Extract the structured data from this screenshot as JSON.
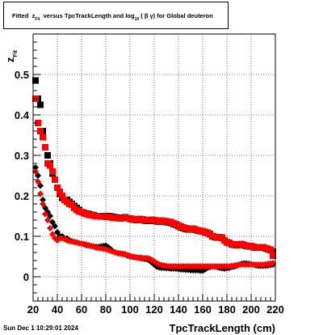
{
  "chart_data": {
    "type": "scatter",
    "title_parts": {
      "prefix": "Fitted",
      "var": "z",
      "var_sub": "Fit",
      "middle": "versus TpcTrackLength and log",
      "log_sub": "10",
      "suffix": "( β γ) for Global deuteron"
    },
    "xlabel": "TpcTrackLength (cm)",
    "ylabel": "z",
    "ylabel_sub": "Fit",
    "xlim": [
      20,
      220
    ],
    "ylim": [
      -0.06,
      0.6
    ],
    "x_ticks": [
      20,
      40,
      60,
      80,
      100,
      120,
      140,
      160,
      180,
      200,
      220
    ],
    "y_ticks": [
      0,
      0.1,
      0.2,
      0.3,
      0.4,
      0.5
    ],
    "y_tick_labels": [
      "0",
      "0.1",
      "0.2",
      "0.3",
      "0.4",
      "0.5"
    ],
    "grid": true,
    "series": [
      {
        "color": "#000000",
        "marker": "square",
        "x": [
          22,
          24,
          26,
          28,
          30,
          32,
          34,
          36,
          38,
          40,
          42,
          44,
          46,
          48,
          50,
          52,
          54,
          56,
          58,
          60,
          62,
          64,
          66,
          68,
          70,
          72,
          74,
          76,
          78,
          80,
          82,
          84,
          86,
          88,
          90,
          92,
          94,
          96,
          98,
          100,
          102,
          104,
          106,
          108,
          110,
          112,
          114,
          116,
          118,
          120,
          122,
          124,
          126,
          128,
          130,
          132,
          134,
          136,
          138,
          140,
          142,
          144,
          146,
          148,
          150,
          152,
          154,
          156,
          158,
          160,
          162,
          164,
          166,
          168,
          170,
          172,
          174,
          176,
          178,
          180,
          182,
          184,
          186,
          188,
          190,
          192,
          194,
          196,
          198,
          200,
          202,
          204,
          206,
          208,
          210,
          212,
          214,
          216,
          218
        ],
        "y": [
          0.485,
          0.44,
          0.425,
          0.36,
          0.32,
          0.3,
          0.28,
          0.255,
          0.24,
          0.22,
          0.205,
          0.195,
          0.19,
          0.19,
          0.185,
          0.18,
          0.175,
          0.17,
          0.165,
          0.16,
          0.158,
          0.156,
          0.155,
          0.153,
          0.152,
          0.15,
          0.15,
          0.15,
          0.15,
          0.15,
          0.15,
          0.149,
          0.148,
          0.147,
          0.146,
          0.145,
          0.146,
          0.147,
          0.145,
          0.143,
          0.142,
          0.141,
          0.14,
          0.141,
          0.14,
          0.139,
          0.138,
          0.138,
          0.139,
          0.138,
          0.137,
          0.136,
          0.137,
          0.136,
          0.135,
          0.134,
          0.133,
          0.13,
          0.128,
          0.125,
          0.122,
          0.12,
          0.118,
          0.117,
          0.117,
          0.118,
          0.116,
          0.114,
          0.113,
          0.112,
          0.11,
          0.108,
          0.105,
          0.1,
          0.098,
          0.097,
          0.097,
          0.096,
          0.09,
          0.085,
          0.083,
          0.08,
          0.079,
          0.078,
          0.079,
          0.08,
          0.078,
          0.076,
          0.075,
          0.075,
          0.073,
          0.072,
          0.072,
          0.072,
          0.072,
          0.07,
          0.068,
          0.066,
          0.062
        ]
      },
      {
        "color": "#ff0000",
        "marker": "square",
        "x": [
          22,
          24,
          26,
          28,
          30,
          32,
          34,
          36,
          38,
          40,
          42,
          44,
          46,
          48,
          50,
          52,
          54,
          56,
          58,
          60,
          62,
          64,
          66,
          68,
          70,
          72,
          74,
          76,
          78,
          80,
          82,
          84,
          86,
          88,
          90,
          92,
          94,
          96,
          98,
          100,
          102,
          104,
          106,
          108,
          110,
          112,
          114,
          116,
          118,
          120,
          122,
          124,
          126,
          128,
          130,
          132,
          134,
          136,
          138,
          140,
          142,
          144,
          146,
          148,
          150,
          152,
          154,
          156,
          158,
          160,
          162,
          164,
          166,
          168,
          170,
          172,
          174,
          176,
          178,
          180,
          182,
          184,
          186,
          188,
          190,
          192,
          194,
          196,
          198,
          200,
          202,
          204,
          206,
          208,
          210,
          212,
          214,
          216,
          218
        ],
        "y": [
          0.44,
          0.38,
          0.36,
          0.345,
          0.32,
          0.28,
          0.275,
          0.26,
          0.24,
          0.22,
          0.21,
          0.2,
          0.19,
          0.185,
          0.18,
          0.178,
          0.17,
          0.165,
          0.162,
          0.16,
          0.157,
          0.155,
          0.153,
          0.152,
          0.151,
          0.15,
          0.15,
          0.149,
          0.149,
          0.148,
          0.148,
          0.147,
          0.146,
          0.146,
          0.145,
          0.144,
          0.145,
          0.146,
          0.145,
          0.144,
          0.143,
          0.142,
          0.142,
          0.143,
          0.142,
          0.141,
          0.14,
          0.14,
          0.141,
          0.14,
          0.139,
          0.138,
          0.139,
          0.138,
          0.137,
          0.136,
          0.135,
          0.132,
          0.13,
          0.127,
          0.124,
          0.122,
          0.12,
          0.119,
          0.118,
          0.119,
          0.117,
          0.115,
          0.114,
          0.113,
          0.111,
          0.109,
          0.106,
          0.101,
          0.099,
          0.098,
          0.098,
          0.097,
          0.09,
          0.086,
          0.084,
          0.081,
          0.08,
          0.079,
          0.08,
          0.081,
          0.079,
          0.077,
          0.076,
          0.076,
          0.074,
          0.073,
          0.073,
          0.073,
          0.073,
          0.071,
          0.069,
          0.067,
          0.052
        ]
      },
      {
        "color": "#000000",
        "marker": "diamond",
        "x": [
          22,
          24,
          26,
          28,
          30,
          32,
          34,
          36,
          38,
          40,
          42,
          44,
          46,
          48,
          50,
          52,
          54,
          56,
          58,
          60,
          62,
          64,
          66,
          68,
          70,
          72,
          74,
          76,
          78,
          80,
          82,
          84,
          86,
          88,
          90,
          92,
          94,
          96,
          98,
          100,
          102,
          104,
          106,
          108,
          110,
          112,
          114,
          116,
          118,
          120,
          122,
          124,
          126,
          128,
          130,
          132,
          134,
          136,
          138,
          140,
          142,
          144,
          146,
          148,
          150,
          152,
          154,
          156,
          158,
          160,
          162,
          164,
          166,
          168,
          170,
          172,
          174,
          176,
          178,
          180,
          182,
          184,
          186,
          188,
          190,
          192,
          194,
          196,
          198,
          200,
          202,
          204,
          206,
          208,
          210,
          212,
          214,
          216,
          218
        ],
        "y": [
          0.27,
          0.25,
          0.225,
          0.19,
          0.17,
          0.16,
          0.15,
          0.135,
          0.125,
          0.11,
          0.1,
          0.1,
          0.095,
          0.095,
          0.09,
          0.088,
          0.086,
          0.085,
          0.083,
          0.082,
          0.08,
          0.078,
          0.077,
          0.076,
          0.075,
          0.074,
          0.074,
          0.075,
          0.076,
          0.077,
          0.073,
          0.068,
          0.063,
          0.06,
          0.058,
          0.057,
          0.056,
          0.055,
          0.052,
          0.05,
          0.049,
          0.048,
          0.047,
          0.046,
          0.045,
          0.044,
          0.043,
          0.04,
          0.035,
          0.03,
          0.025,
          0.023,
          0.022,
          0.022,
          0.021,
          0.021,
          0.02,
          0.02,
          0.02,
          0.019,
          0.018,
          0.018,
          0.017,
          0.017,
          0.016,
          0.016,
          0.016,
          0.016,
          0.015,
          0.015,
          0.018,
          0.022,
          0.024,
          0.025,
          0.025,
          0.024,
          0.022,
          0.021,
          0.02,
          0.021,
          0.022,
          0.024,
          0.025,
          0.027,
          0.03,
          0.032,
          0.033,
          0.033,
          0.032,
          0.031,
          0.03,
          0.028,
          0.027,
          0.027,
          0.027,
          0.027,
          0.028,
          0.029,
          0.03
        ]
      },
      {
        "color": "#ff0000",
        "marker": "diamond",
        "x": [
          22,
          24,
          26,
          28,
          30,
          32,
          34,
          36,
          38,
          40,
          42,
          44,
          46,
          48,
          50,
          52,
          54,
          56,
          58,
          60,
          62,
          64,
          66,
          68,
          70,
          72,
          74,
          76,
          78,
          80,
          82,
          84,
          86,
          88,
          90,
          92,
          94,
          96,
          98,
          100,
          102,
          104,
          106,
          108,
          110,
          112,
          114,
          116,
          118,
          120,
          122,
          124,
          126,
          128,
          130,
          132,
          134,
          136,
          138,
          140,
          142,
          144,
          146,
          148,
          150,
          152,
          154,
          156,
          158,
          160,
          162,
          164,
          166,
          168,
          170,
          172,
          174,
          176,
          178,
          180,
          182,
          184,
          186,
          188,
          190,
          192,
          194,
          196,
          198,
          200,
          202,
          204,
          206,
          208,
          210,
          212,
          214,
          216,
          218
        ],
        "y": [
          0.26,
          0.235,
          0.205,
          0.18,
          0.155,
          0.14,
          0.12,
          0.105,
          0.095,
          0.09,
          0.095,
          0.095,
          0.093,
          0.09,
          0.088,
          0.087,
          0.086,
          0.085,
          0.083,
          0.082,
          0.081,
          0.08,
          0.078,
          0.076,
          0.074,
          0.072,
          0.071,
          0.07,
          0.069,
          0.068,
          0.066,
          0.064,
          0.062,
          0.06,
          0.059,
          0.058,
          0.057,
          0.056,
          0.054,
          0.052,
          0.05,
          0.049,
          0.048,
          0.048,
          0.047,
          0.046,
          0.046,
          0.045,
          0.042,
          0.038,
          0.034,
          0.031,
          0.029,
          0.028,
          0.027,
          0.026,
          0.026,
          0.026,
          0.026,
          0.026,
          0.026,
          0.026,
          0.026,
          0.026,
          0.026,
          0.026,
          0.026,
          0.026,
          0.026,
          0.026,
          0.026,
          0.026,
          0.026,
          0.026,
          0.026,
          0.026,
          0.026,
          0.026,
          0.026,
          0.026,
          0.026,
          0.027,
          0.028,
          0.029,
          0.03,
          0.03,
          0.03,
          0.03,
          0.03,
          0.03,
          0.03,
          0.03,
          0.03,
          0.03,
          0.03,
          0.031,
          0.032,
          0.033,
          0.034
        ]
      }
    ]
  },
  "footer": {
    "timestamp": "Sun Dec  1 10:29:01 2024"
  }
}
